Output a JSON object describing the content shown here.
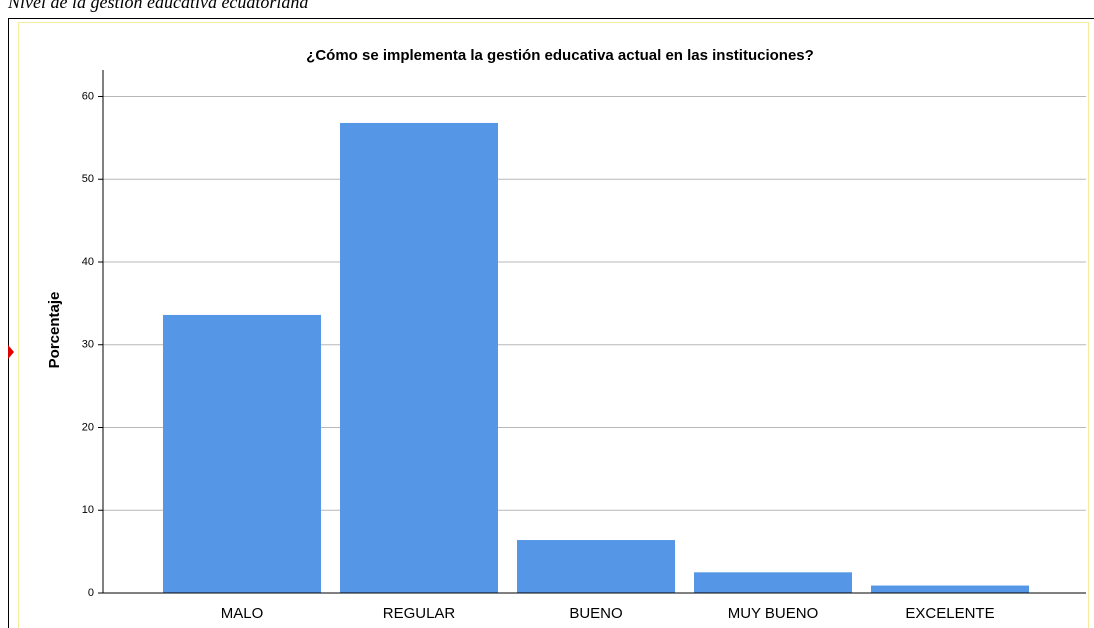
{
  "caption": "Nivel de la gestión educativa ecuatoriana",
  "chart_data": {
    "type": "bar",
    "title": "¿Cómo se implementa la gestión educativa actual en las instituciones?",
    "ylabel": "Porcentaje",
    "categories": [
      "MALO",
      "REGULAR",
      "BUENO",
      "MUY BUENO",
      "EXCELENTE"
    ],
    "values": [
      33.6,
      56.8,
      6.4,
      2.5,
      0.9
    ],
    "color": "#5596e6",
    "ylim": [
      0,
      63.2
    ],
    "yticks": [
      0,
      10,
      20,
      30,
      40,
      50,
      60
    ],
    "grid": true
  }
}
